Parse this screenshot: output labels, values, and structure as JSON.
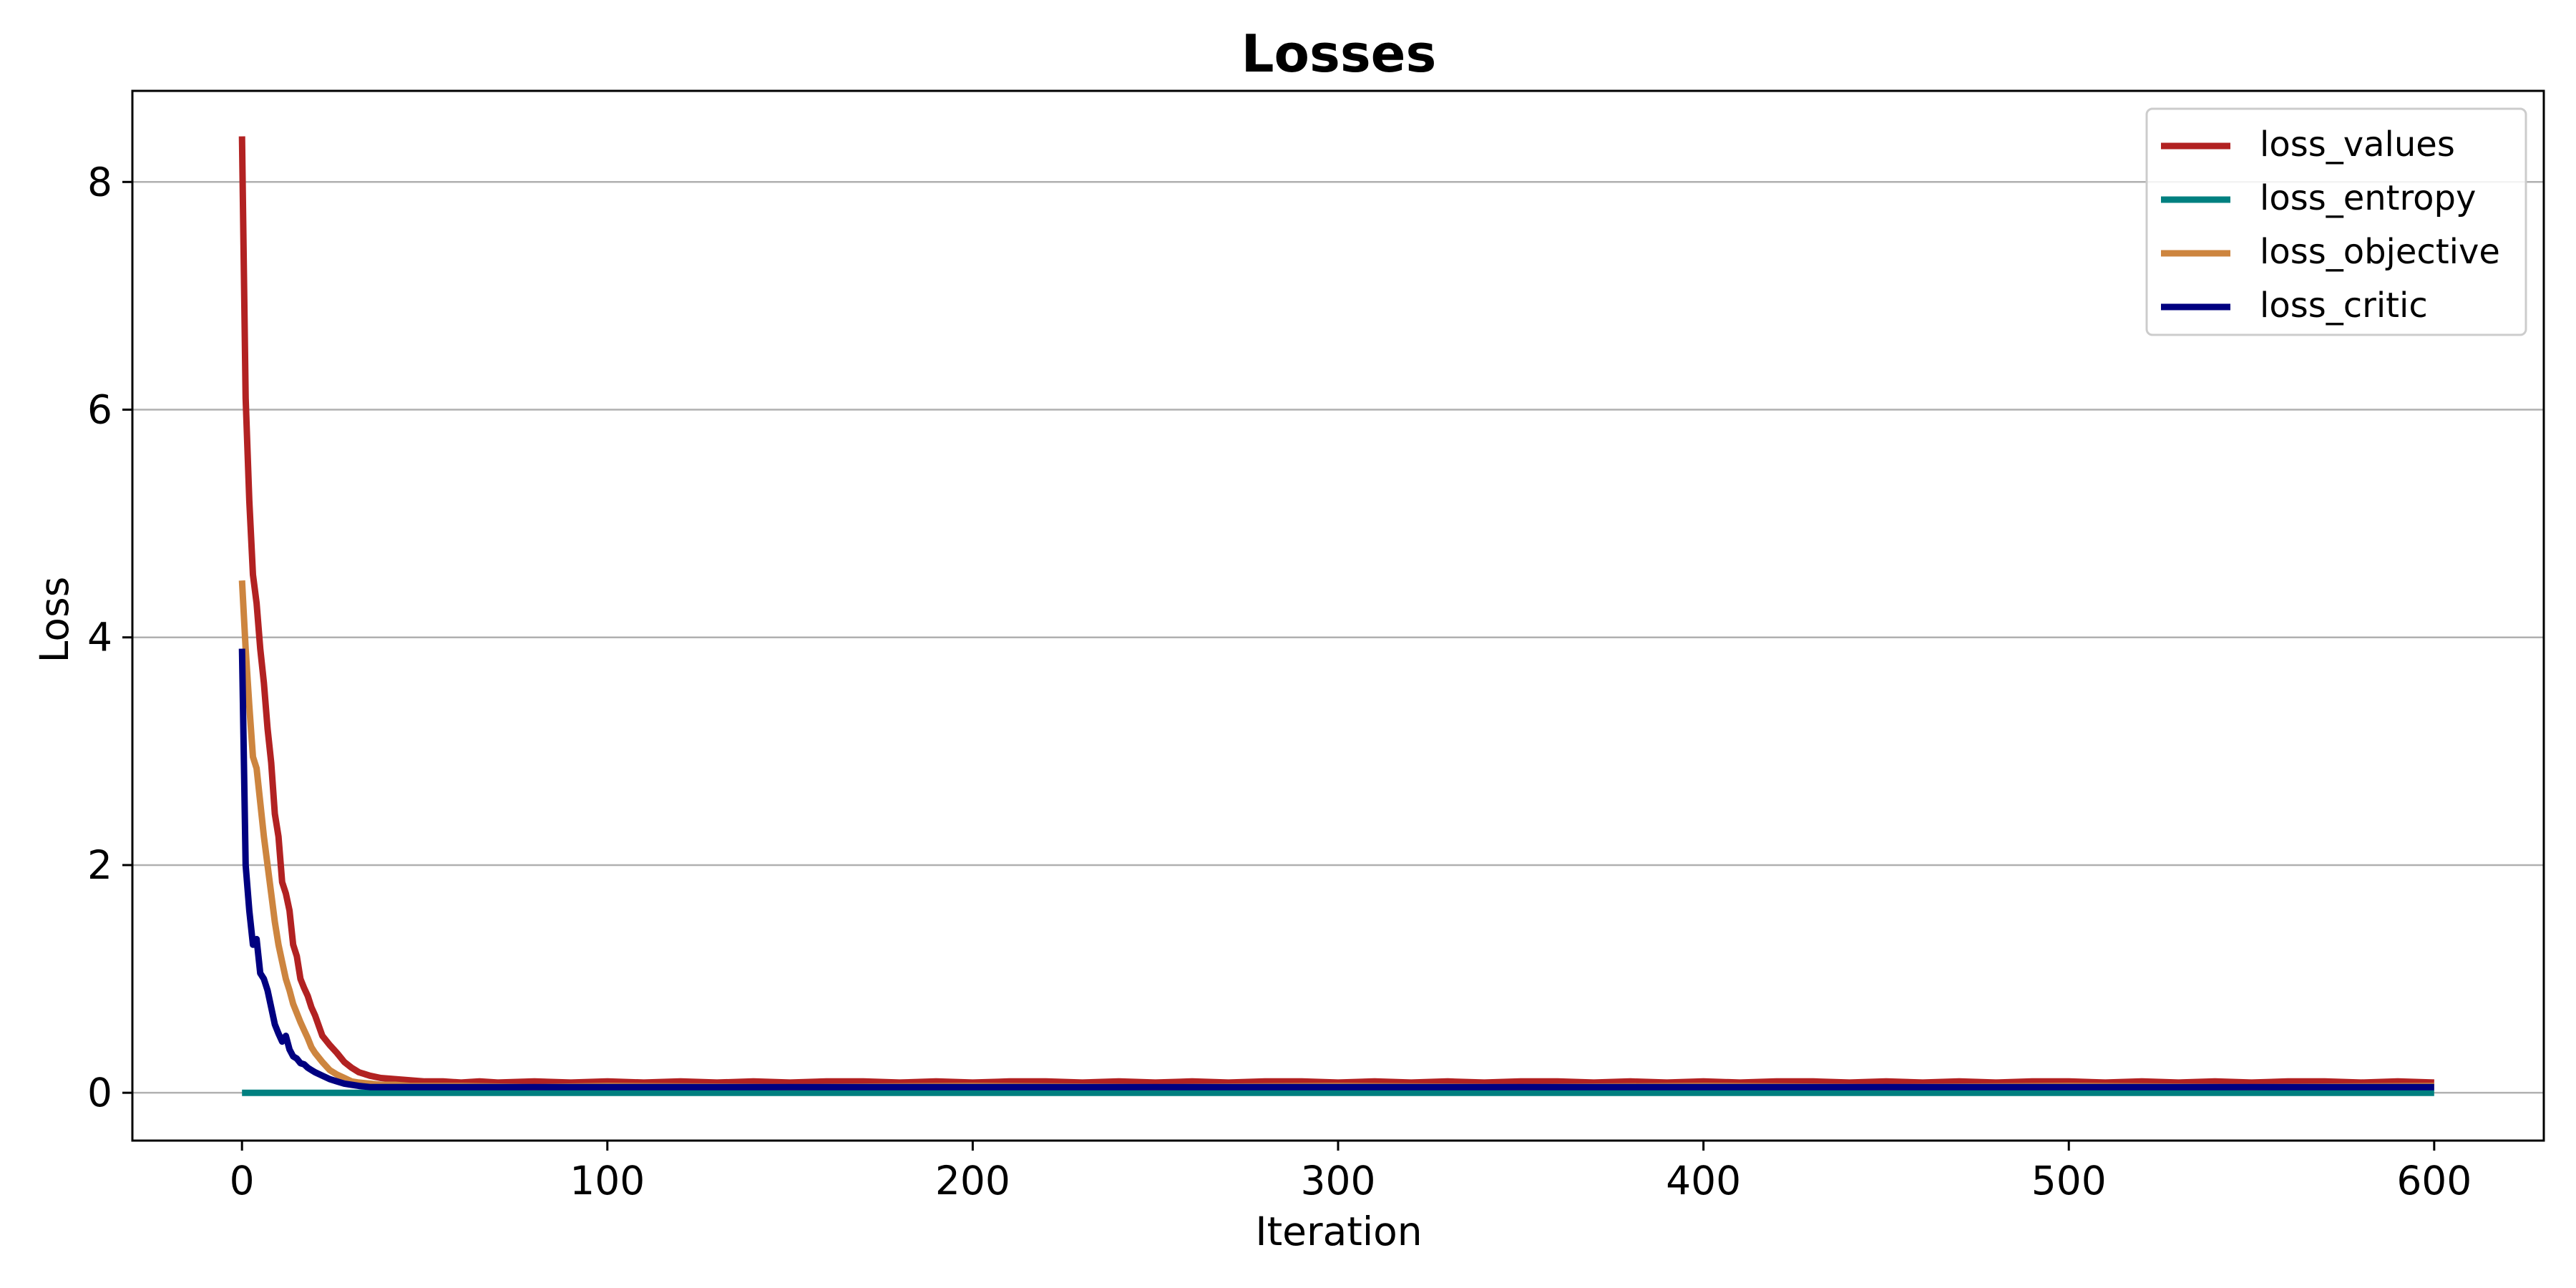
{
  "chart_data": {
    "type": "line",
    "title": "Losses",
    "xlabel": "Iteration",
    "ylabel": "Loss",
    "xlim": [
      -30,
      630
    ],
    "ylim": [
      -0.42,
      8.8
    ],
    "xticks": [
      0,
      100,
      200,
      300,
      400,
      500,
      600
    ],
    "yticks": [
      0,
      2,
      4,
      6,
      8
    ],
    "grid": "horizontal",
    "legend_position": "top-right",
    "series": [
      {
        "name": "loss_values",
        "color": "#b22222",
        "x": [
          0,
          1,
          2,
          3,
          4,
          5,
          6,
          7,
          8,
          9,
          10,
          11,
          12,
          13,
          14,
          15,
          16,
          17,
          18,
          19,
          20,
          22,
          24,
          26,
          28,
          30,
          32,
          35,
          38,
          42,
          46,
          50,
          55,
          60,
          65,
          70,
          80,
          90,
          100,
          110,
          120,
          130,
          140,
          150,
          160,
          170,
          180,
          190,
          200,
          210,
          220,
          230,
          240,
          250,
          260,
          270,
          280,
          290,
          300,
          310,
          320,
          330,
          340,
          350,
          360,
          370,
          380,
          390,
          400,
          410,
          420,
          430,
          440,
          450,
          460,
          470,
          480,
          490,
          500,
          510,
          520,
          530,
          540,
          550,
          560,
          570,
          580,
          590,
          600
        ],
        "values": [
          8.4,
          6.1,
          5.2,
          4.55,
          4.3,
          3.9,
          3.6,
          3.2,
          2.9,
          2.45,
          2.25,
          1.85,
          1.75,
          1.6,
          1.3,
          1.2,
          1.0,
          0.92,
          0.85,
          0.75,
          0.68,
          0.5,
          0.42,
          0.35,
          0.27,
          0.22,
          0.18,
          0.15,
          0.13,
          0.12,
          0.11,
          0.1,
          0.1,
          0.09,
          0.1,
          0.09,
          0.1,
          0.09,
          0.1,
          0.09,
          0.1,
          0.09,
          0.1,
          0.09,
          0.1,
          0.1,
          0.09,
          0.1,
          0.09,
          0.1,
          0.1,
          0.09,
          0.1,
          0.09,
          0.1,
          0.09,
          0.1,
          0.1,
          0.09,
          0.1,
          0.09,
          0.1,
          0.09,
          0.1,
          0.1,
          0.09,
          0.1,
          0.09,
          0.1,
          0.09,
          0.1,
          0.1,
          0.09,
          0.1,
          0.09,
          0.1,
          0.09,
          0.1,
          0.1,
          0.09,
          0.1,
          0.09,
          0.1,
          0.09,
          0.1,
          0.1,
          0.09,
          0.1,
          0.09
        ]
      },
      {
        "name": "loss_entropy",
        "color": "#008080",
        "x": [
          0,
          600
        ],
        "values": [
          0.0,
          0.0
        ]
      },
      {
        "name": "loss_objective",
        "color": "#cd853f",
        "x": [
          0,
          1,
          2,
          3,
          4,
          5,
          6,
          7,
          8,
          9,
          10,
          11,
          12,
          13,
          14,
          15,
          16,
          17,
          18,
          19,
          20,
          22,
          24,
          26,
          28,
          30,
          32,
          35,
          38,
          42,
          46,
          50,
          60,
          80,
          100,
          150,
          200,
          250,
          300,
          350,
          400,
          450,
          500,
          550,
          600
        ],
        "values": [
          4.5,
          3.9,
          3.4,
          2.95,
          2.85,
          2.55,
          2.25,
          2.0,
          1.75,
          1.5,
          1.3,
          1.15,
          1.0,
          0.9,
          0.78,
          0.7,
          0.62,
          0.55,
          0.48,
          0.4,
          0.35,
          0.27,
          0.2,
          0.16,
          0.13,
          0.1,
          0.09,
          0.08,
          0.07,
          0.07,
          0.06,
          0.06,
          0.06,
          0.05,
          0.06,
          0.05,
          0.06,
          0.05,
          0.06,
          0.05,
          0.06,
          0.05,
          0.06,
          0.05,
          0.06
        ]
      },
      {
        "name": "loss_critic",
        "color": "#000080",
        "x": [
          0,
          1,
          2,
          3,
          4,
          5,
          6,
          7,
          8,
          9,
          10,
          11,
          12,
          13,
          14,
          15,
          16,
          17,
          18,
          19,
          20,
          22,
          24,
          26,
          28,
          30,
          32,
          35,
          38,
          42,
          46,
          50,
          60,
          80,
          100,
          150,
          200,
          250,
          300,
          350,
          400,
          450,
          500,
          550,
          600
        ],
        "values": [
          3.9,
          2.0,
          1.6,
          1.3,
          1.35,
          1.05,
          1.0,
          0.9,
          0.75,
          0.6,
          0.52,
          0.45,
          0.5,
          0.38,
          0.32,
          0.3,
          0.26,
          0.25,
          0.22,
          0.2,
          0.18,
          0.15,
          0.12,
          0.1,
          0.08,
          0.07,
          0.06,
          0.05,
          0.05,
          0.05,
          0.05,
          0.05,
          0.05,
          0.05,
          0.05,
          0.05,
          0.05,
          0.05,
          0.05,
          0.05,
          0.05,
          0.05,
          0.05,
          0.05,
          0.05
        ]
      }
    ]
  }
}
